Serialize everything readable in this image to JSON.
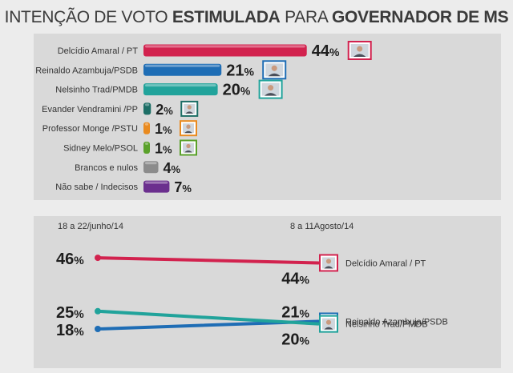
{
  "title": {
    "part1": "INTENÇÃO DE VOTO",
    "part2": "ESTIMULADA",
    "part3": "PARA",
    "part4": "GOVERNADOR DE MS"
  },
  "chart_data": [
    {
      "type": "bar",
      "orientation": "horizontal",
      "categories": [
        "Delcídio Amaral / PT",
        "Reinaldo Azambuja/PSDB",
        "Nelsinho Trad/PMDB",
        "Evander Vendramini /PP",
        "Professor Monge /PSTU",
        "Sidney Melo/PSOL",
        "Brancos e nulos",
        "Não sabe / Indecisos"
      ],
      "values": [
        44,
        21,
        20,
        2,
        1,
        1,
        4,
        7
      ],
      "unit": "%",
      "colors": [
        "#d2224e",
        "#1e6db5",
        "#21a39b",
        "#1d6e66",
        "#e98a1f",
        "#5aa12a",
        "#8c8c8c",
        "#6b2f8e"
      ],
      "photos": [
        true,
        true,
        true,
        true,
        true,
        true,
        false,
        false
      ]
    },
    {
      "type": "line",
      "x": [
        "18 a 22/junho/14",
        "8 a 11Agosto/14"
      ],
      "series": [
        {
          "name": "Delcídio Amaral / PT",
          "values": [
            46,
            44
          ],
          "color": "#d2224e"
        },
        {
          "name": "Reinaldo Azambuja/PSDB",
          "values": [
            18,
            21
          ],
          "color": "#1e6db5"
        },
        {
          "name": "Nelsinho Trad/PMDB",
          "values": [
            25,
            20
          ],
          "color": "#21a39b"
        }
      ],
      "unit": "%"
    }
  ]
}
